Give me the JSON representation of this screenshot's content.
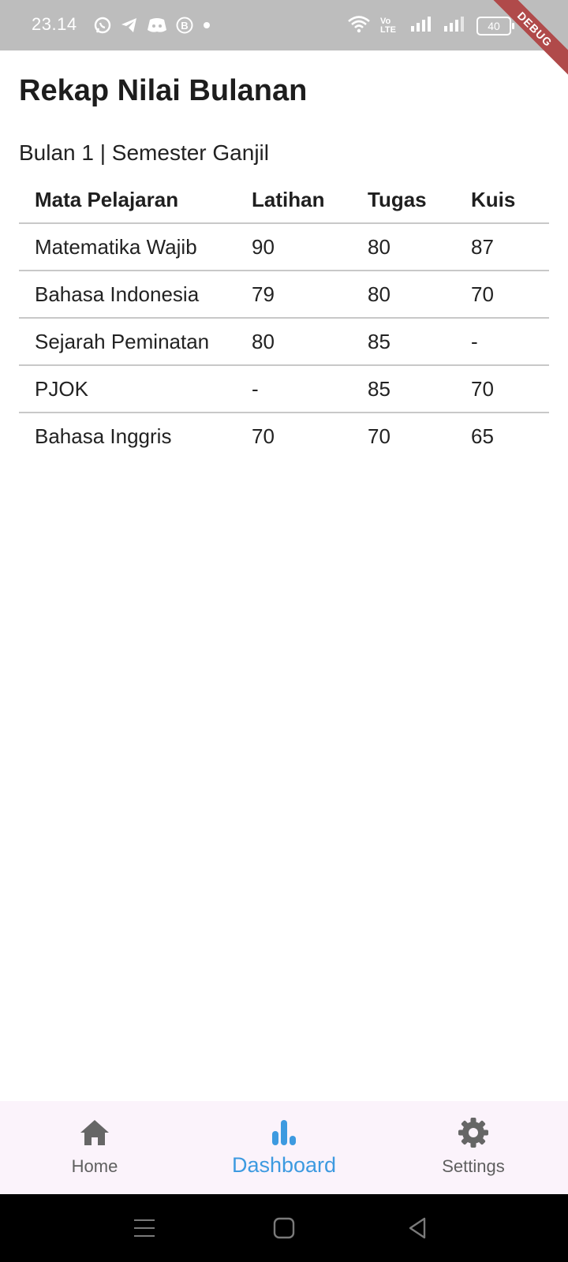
{
  "status_bar": {
    "time": "23.14",
    "network_label": "Vo LTE",
    "battery": "40",
    "debug_banner": "DEBUG"
  },
  "page": {
    "title": "Rekap Nilai Bulanan",
    "period": "Bulan 1 | Semester Ganjil"
  },
  "table": {
    "headers": [
      "Mata Pelajaran",
      "Latihan",
      "Tugas",
      "Kuis"
    ],
    "rows": [
      [
        "Matematika Wajib",
        "90",
        "80",
        "87"
      ],
      [
        "Bahasa Indonesia",
        "79",
        "80",
        "70"
      ],
      [
        "Sejarah Peminatan",
        "80",
        "85",
        "-"
      ],
      [
        "PJOK",
        "-",
        "85",
        "70"
      ],
      [
        "Bahasa Inggris",
        "70",
        "70",
        "65"
      ]
    ]
  },
  "bottom_nav": {
    "items": [
      {
        "label": "Home",
        "icon": "home-icon"
      },
      {
        "label": "Dashboard",
        "icon": "bar-chart-icon",
        "active": true
      },
      {
        "label": "Settings",
        "icon": "gear-icon"
      }
    ],
    "active_color": "#3d9ae0",
    "inactive_color": "#5f5f5f"
  }
}
